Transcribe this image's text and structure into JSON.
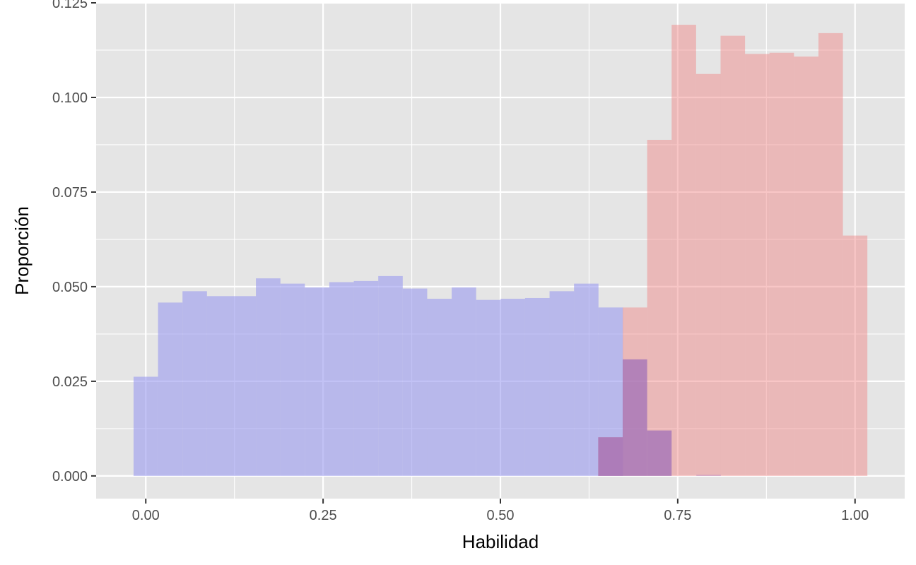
{
  "chart_data": {
    "type": "histogram",
    "title": "",
    "xlabel": "Habilidad",
    "ylabel": "Proporción",
    "xlim": [
      -0.07,
      1.07
    ],
    "ylim": [
      -0.006,
      0.125
    ],
    "x_ticks": [
      0.0,
      0.25,
      0.5,
      0.75,
      1.0
    ],
    "x_tick_labels": [
      "0.00",
      "0.25",
      "0.50",
      "0.75",
      "1.00"
    ],
    "y_ticks": [
      0.0,
      0.025,
      0.05,
      0.075,
      0.1,
      0.125
    ],
    "y_tick_labels": [
      "0.000",
      "0.025",
      "0.050",
      "0.075",
      "0.100",
      "0.125"
    ],
    "grid": true,
    "panel_background": "#e5e5e5",
    "grid_color": "#ffffff",
    "bin_width": 0.0345,
    "series": [
      {
        "color": "#9999ee",
        "opacity": 0.6,
        "bins_start": -0.0172,
        "values": [
          0.0262,
          0.0458,
          0.0488,
          0.0475,
          0.0475,
          0.0522,
          0.0508,
          0.0498,
          0.0512,
          0.0515,
          0.0528,
          0.0495,
          0.0468,
          0.0498,
          0.0465,
          0.0468,
          0.047,
          0.0488,
          0.0508,
          0.0445,
          0.0,
          0.0,
          0.0,
          0.0003
        ]
      },
      {
        "color": "#f08080",
        "opacity": 0.45,
        "bins_start": 0.6379,
        "values": [
          0.0102,
          0.0445,
          0.0888,
          0.1192,
          0.1062,
          0.1163,
          0.1115,
          0.1118,
          0.1108,
          0.117,
          0.0635
        ]
      },
      {
        "color": "#a070b8",
        "opacity": 0.75,
        "bins_start": 0.6379,
        "values": [
          0.0102,
          0.0308,
          0.012
        ]
      }
    ]
  }
}
